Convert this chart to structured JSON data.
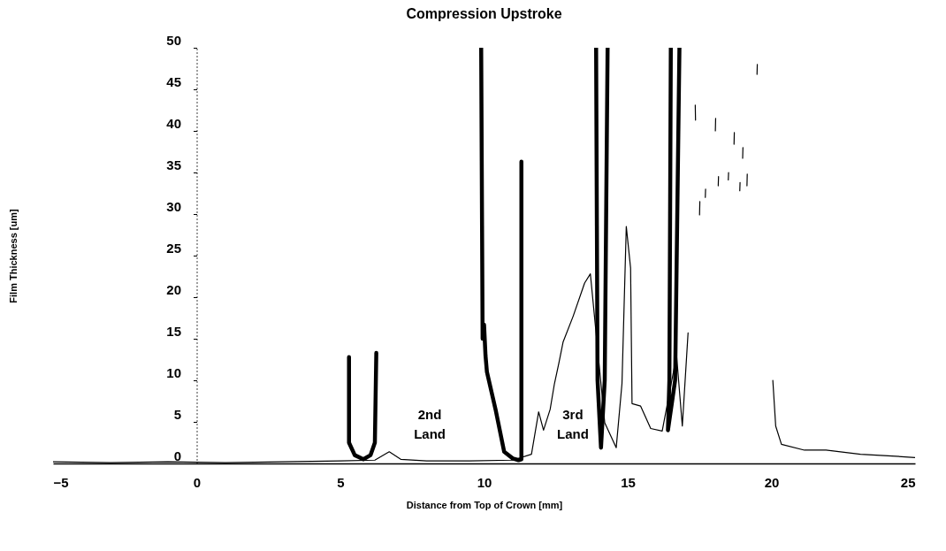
{
  "chart_data": {
    "type": "line",
    "title": "Compression Upstroke",
    "xlabel": "Distance from Top of Crown [mm]",
    "ylabel": "Film Thickness [um]",
    "xlim": [
      -5,
      25
    ],
    "ylim": [
      0,
      50
    ],
    "xticks": [
      -5,
      0,
      5,
      10,
      15,
      20,
      25
    ],
    "yticks": [
      0,
      5,
      10,
      15,
      20,
      25,
      30,
      35,
      40,
      45,
      50
    ],
    "line_style": "solid",
    "marker": "none",
    "annotations": [
      "2nd Land",
      "3rd Land"
    ],
    "series": [
      {
        "color": "#000000",
        "x": [
          -5,
          -3,
          -1,
          1,
          3,
          5,
          6.2,
          6.7,
          7.1,
          8,
          9.5,
          11,
          11.65,
          11.9,
          12.07,
          12.3,
          12.45,
          12.6,
          12.75,
          13.1,
          13.5,
          13.7,
          14.2,
          14.6,
          14.8,
          14.95,
          15.1,
          15.15,
          15.45,
          15.8,
          16.2,
          16.7,
          16.9,
          17.1,
          17.2,
          17.35,
          17.36,
          17.4,
          17.5,
          17.51,
          17.6,
          17.7,
          17.71,
          17.9,
          18.05,
          18.06,
          18.1,
          18.15,
          18.16,
          18.3,
          18.5,
          18.51,
          18.6,
          18.7,
          18.71,
          18.8,
          18.9,
          18.91,
          18.95,
          19.0,
          19.01,
          19.1,
          19.15,
          19.16,
          19.3,
          19.5,
          19.51,
          19.6,
          20.05,
          20.15,
          20.35,
          21.15,
          21.9,
          23.1,
          24.2,
          25
        ],
        "values": [
          0.2,
          0.1,
          0.2,
          0.1,
          0.2,
          0.3,
          0.4,
          1.4,
          0.5,
          0.3,
          0.3,
          0.4,
          1.1,
          6.2,
          4.0,
          6.5,
          9.6,
          12,
          14.6,
          17.7,
          21.7,
          22.8,
          4.9,
          1.9,
          9.6,
          28.5,
          23.5,
          7.2,
          6.9,
          4.2,
          3.9,
          13,
          4.5,
          15.7,
          null,
          43.1,
          41.3,
          null,
          29.9,
          31.5,
          null,
          32,
          33,
          null,
          40,
          41.5,
          null,
          33.4,
          34.5,
          null,
          34.1,
          35,
          null,
          38.4,
          39.8,
          null,
          32.8,
          33.8,
          null,
          36.7,
          38,
          null,
          33.4,
          34.8,
          null,
          46.8,
          48,
          null,
          10,
          4.5,
          2.3,
          1.6,
          1.6,
          1.1,
          0.9,
          0.7
        ]
      },
      {
        "color": "#000000",
        "x": [
          5.3,
          5.3,
          5.5,
          5.8,
          6.05,
          6.2,
          6.25,
          null,
          9.9,
          9.95,
          10.0,
          10.05,
          10.1,
          10.4,
          10.7,
          11.0,
          11.2,
          11.3,
          11.3,
          null,
          13.9,
          13.95,
          14.07,
          14.2,
          14.3,
          null,
          16.5,
          16.45,
          16.4,
          16.65,
          16.8
        ],
        "values": [
          12.8,
          2.5,
          1.0,
          0.5,
          1.0,
          2.5,
          13.3,
          null,
          50,
          15,
          16.7,
          13,
          11,
          6.5,
          1.4,
          0.6,
          0.4,
          0.5,
          36.3,
          null,
          50,
          10,
          1.9,
          10,
          50,
          null,
          50,
          10,
          4.0,
          10,
          50
        ]
      }
    ]
  }
}
